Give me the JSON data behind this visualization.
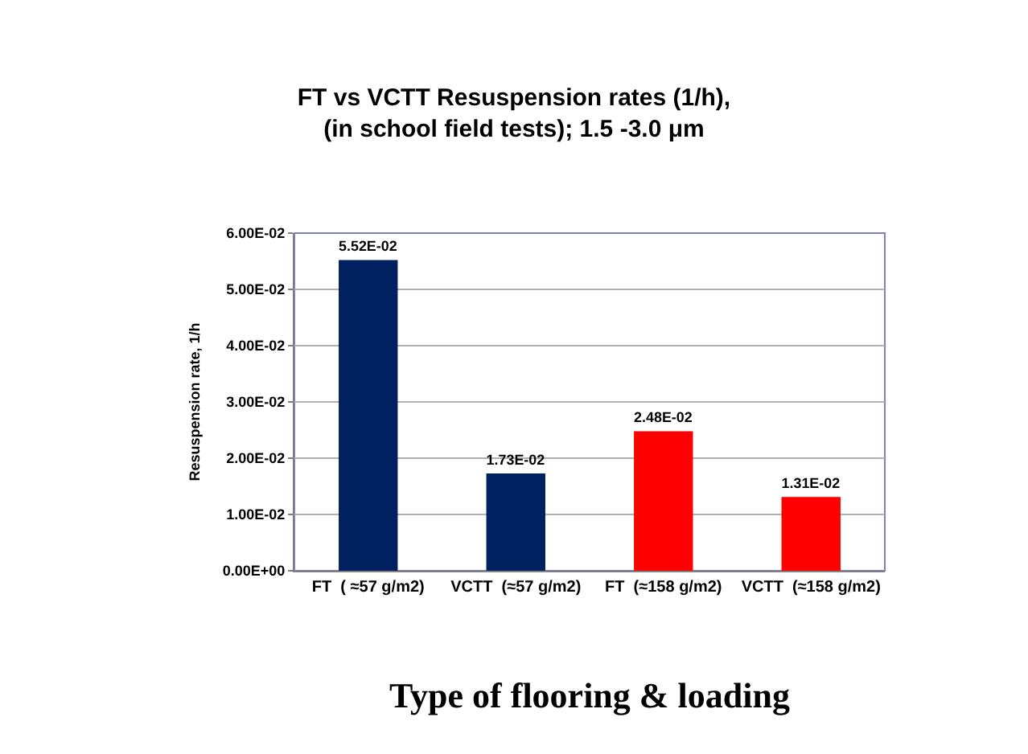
{
  "chart_data": {
    "type": "bar",
    "title": "FT vs VCTT Resuspension rates (1/h),\n(in school field tests); 1.5 -3.0 μm",
    "xlabel": "Type of flooring & loading",
    "ylabel": "Resuspension rate, 1/h",
    "categories": [
      "FT  ( ≈57 g/m2)",
      "VCTT  (≈57 g/m2)",
      "FT  (≈158 g/m2)",
      "VCTT  (≈158 g/m2)"
    ],
    "values": [
      0.0552,
      0.0173,
      0.0248,
      0.0131
    ],
    "colors": [
      "#002060",
      "#002060",
      "#ff0000",
      "#ff0000"
    ],
    "value_labels": [
      "5.52E-02",
      "1.73E-02",
      "2.48E-02",
      "1.31E-02"
    ],
    "ylim": [
      0,
      0.06
    ],
    "yticks": [
      {
        "value": 0,
        "label": "0.00E+00"
      },
      {
        "value": 0.01,
        "label": "1.00E-02"
      },
      {
        "value": 0.02,
        "label": "2.00E-02"
      },
      {
        "value": 0.03,
        "label": "3.00E-02"
      },
      {
        "value": 0.04,
        "label": "4.00E-02"
      },
      {
        "value": 0.05,
        "label": "5.00E-02"
      },
      {
        "value": 0.06,
        "label": "6.00E-02"
      }
    ],
    "grid": "y"
  }
}
